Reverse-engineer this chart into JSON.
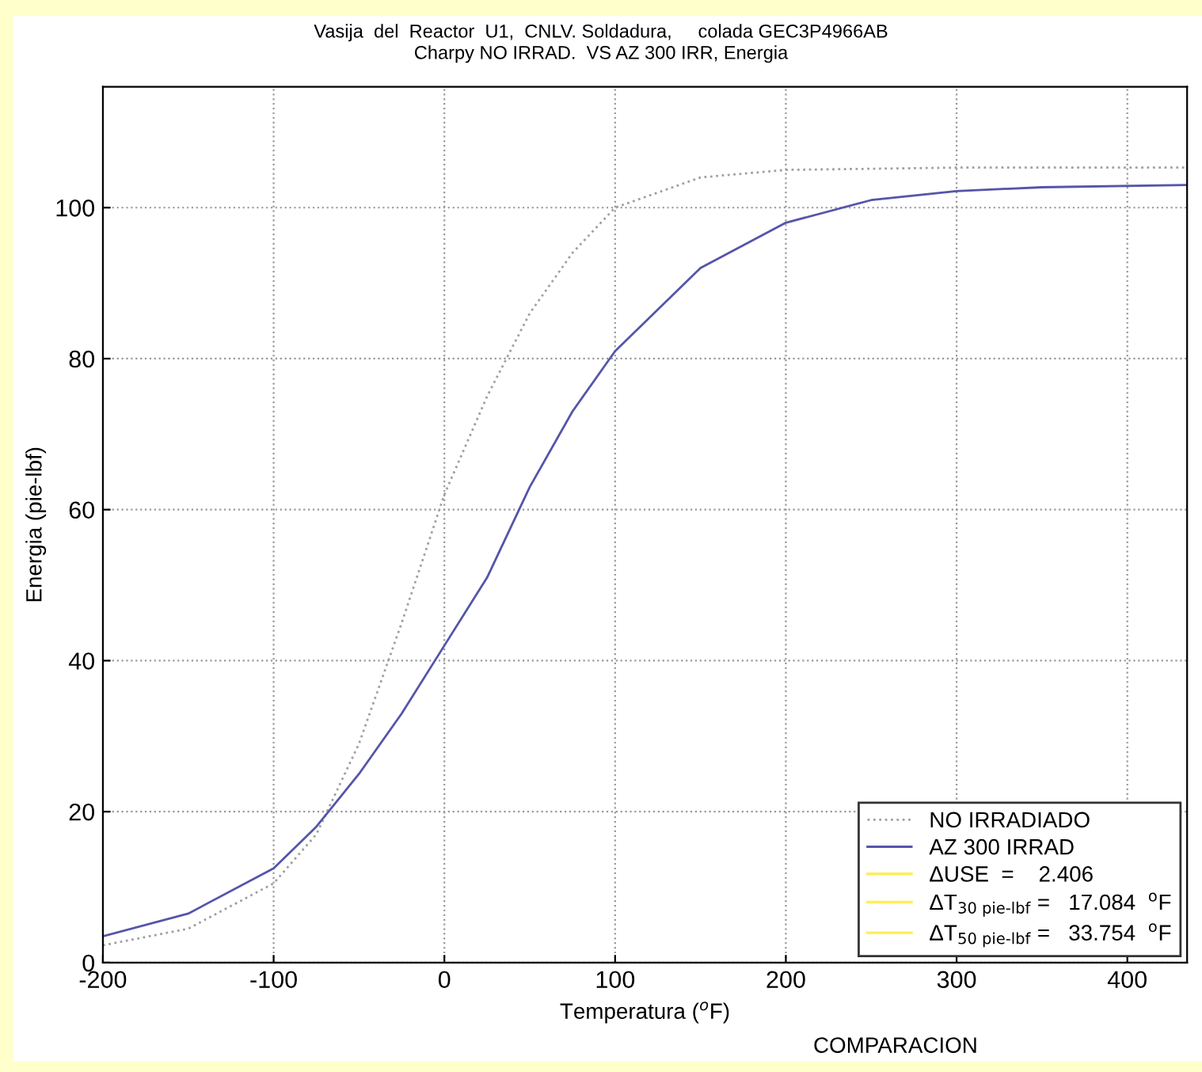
{
  "chart_data": {
    "type": "line",
    "title": "Vasija  del  Reactor  U1,  CNLV. Soldadura,     colada GEC3P4966AB",
    "subtitle": "Charpy NO IRRAD.  VS AZ 300 IRR, Energia",
    "xlabel": "Temperatura ($^{o}$F)",
    "ylabel": "Energia (pie-lbf)",
    "series": [
      {
        "name": "NO IRRADIADO",
        "color": "#a0a0a0",
        "line_style": "dotted",
        "x": [
          -200,
          -150,
          -100,
          -75,
          -50,
          -25,
          0,
          25,
          50,
          75,
          100,
          150,
          200,
          300,
          435
        ],
        "values": [
          2.3,
          4.5,
          10.5,
          17,
          29,
          45,
          62,
          75,
          86,
          94,
          100,
          104,
          105,
          105.3,
          105.3
        ]
      },
      {
        "name": "AZ 300 IRRAD",
        "color": "#5555aa",
        "line_style": "solid",
        "x": [
          -200,
          -150,
          -100,
          -75,
          -50,
          -25,
          0,
          25,
          50,
          75,
          100,
          150,
          200,
          250,
          300,
          350,
          435
        ],
        "values": [
          3.5,
          6.5,
          12.5,
          18,
          25,
          33,
          42,
          51,
          63,
          73,
          81,
          92,
          98,
          101,
          102.2,
          102.7,
          103
        ]
      }
    ],
    "annotations": [
      "ΔUSE  =    2.406",
      "ΔT$_{30 pie-lbf}$ =   17.084  $^{o}$F",
      "ΔT$_{50 pie-lbf}$ =   33.754  $^{o}$F",
      "COMPARACION"
    ],
    "xlim": [
      -200,
      435
    ],
    "ylim": [
      0,
      116
    ],
    "xticks": [
      -200,
      -100,
      0,
      100,
      200,
      300,
      400
    ],
    "yticks": [
      0,
      20,
      40,
      60,
      80,
      100
    ],
    "grid": true,
    "legend": "bottom right",
    "marker": "none"
  }
}
